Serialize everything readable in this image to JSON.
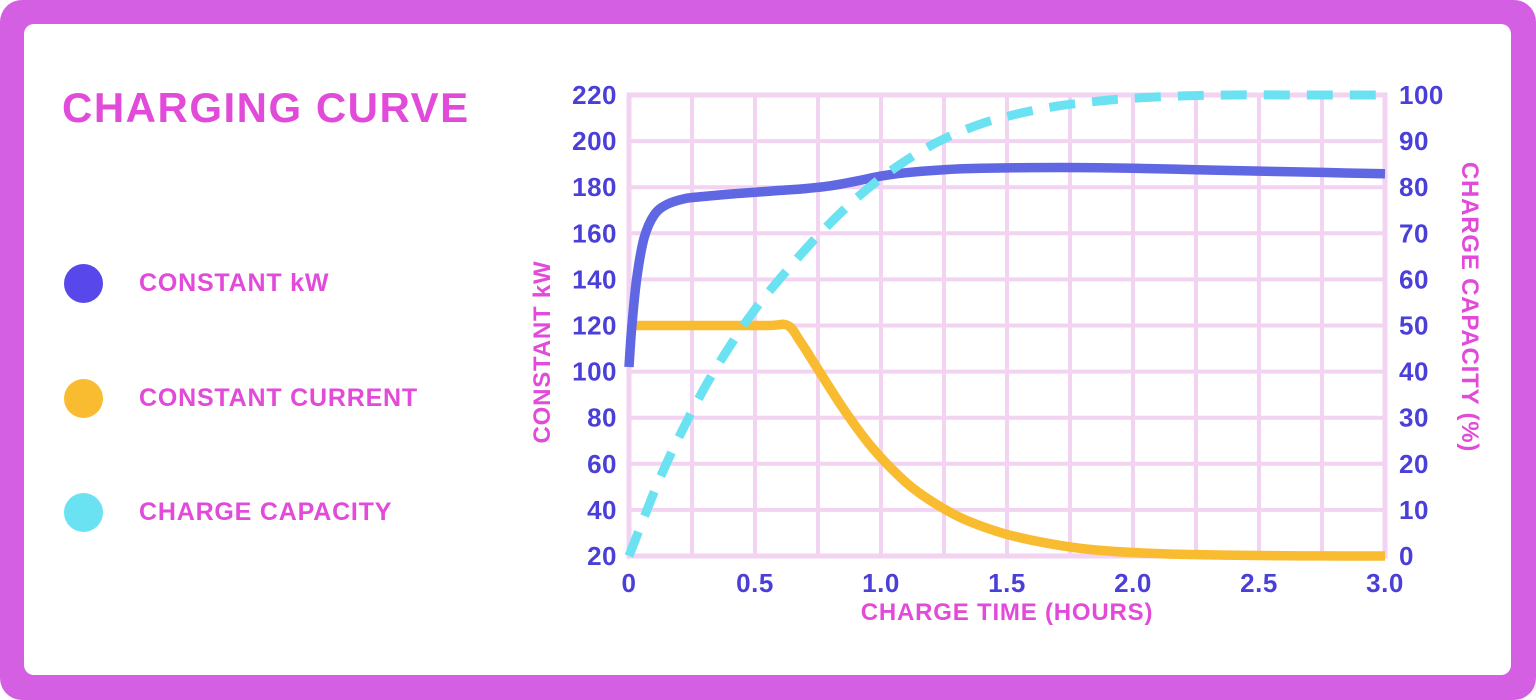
{
  "title": "CHARGING CURVE",
  "colors": {
    "frame": "#D55FE3",
    "panel": "#FFFFFF",
    "magenta_text": "#E24AD9",
    "tick_text": "#4A3FD8",
    "grid": "#F2D3F1",
    "blue_curve": "#6067E2",
    "blue_dot": "#5847EA",
    "yellow_curve": "#F9BB30",
    "cyan_curve": "#6BE2F2"
  },
  "legend": {
    "items": [
      {
        "label": "CONSTANT kW",
        "color": "#5847EA"
      },
      {
        "label": "CONSTANT CURRENT",
        "color": "#F9BB30"
      },
      {
        "label": "CHARGE CAPACITY",
        "color": "#6BE2F2"
      }
    ]
  },
  "chart_data": {
    "type": "line",
    "title": "CHARGING CURVE",
    "xlabel": "CHARGE TIME (HOURS)",
    "ylabel_left": "CONSTANT kW",
    "ylabel_right": "CHARGE CAPACITY (%)",
    "x_range": [
      0,
      3
    ],
    "y_left_range": [
      20,
      220
    ],
    "y_right_range": [
      0,
      100
    ],
    "x_tick_values": [
      0,
      0.5,
      1.0,
      1.5,
      2.0,
      2.5,
      3.0
    ],
    "x_tick_labels": [
      "0",
      "0.5",
      "1.0",
      "1.5",
      "2.0",
      "2.5",
      "3.0"
    ],
    "y_left_ticks": [
      220,
      200,
      180,
      160,
      140,
      120,
      100,
      80,
      60,
      40,
      20
    ],
    "y_right_ticks": [
      100,
      90,
      80,
      70,
      60,
      50,
      40,
      30,
      20,
      10,
      0
    ],
    "grid": {
      "on": true,
      "x_step": 0.25,
      "y_left_step": 20
    },
    "legend_position": "left",
    "series": [
      {
        "name": "CONSTANT kW",
        "axis": "left",
        "style": "solid",
        "color": "#6067E2",
        "x": [
          0,
          0.01,
          0.03,
          0.06,
          0.1,
          0.15,
          0.22,
          0.3,
          0.4,
          0.5,
          0.6,
          0.7,
          0.8,
          0.9,
          1.0,
          1.1,
          1.25,
          1.4,
          1.6,
          1.8,
          2.0,
          2.25,
          2.5,
          2.75,
          3.0
        ],
        "y": [
          102,
          118,
          140,
          158,
          168,
          172.5,
          175,
          176,
          177,
          177.8,
          178.6,
          179.4,
          180.6,
          182.6,
          184.8,
          186.3,
          187.6,
          188.2,
          188.5,
          188.5,
          188.2,
          187.6,
          187,
          186.4,
          185.8
        ]
      },
      {
        "name": "CONSTANT CURRENT",
        "axis": "left",
        "style": "solid",
        "color": "#F9BB30",
        "x": [
          0,
          0.3,
          0.55,
          0.63,
          0.68,
          0.75,
          0.85,
          0.95,
          1.05,
          1.15,
          1.3,
          1.45,
          1.6,
          1.8,
          2.0,
          2.2,
          2.5,
          2.75,
          3.0
        ],
        "y": [
          120,
          120,
          120,
          120,
          113,
          101,
          84,
          69,
          57,
          47.5,
          37.5,
          31,
          26.8,
          23.2,
          21.5,
          20.7,
          20.2,
          20.05,
          20
        ]
      },
      {
        "name": "CHARGE CAPACITY",
        "axis": "right",
        "style": "dashed",
        "color": "#6BE2F2",
        "x": [
          0,
          0.05,
          0.12,
          0.2,
          0.3,
          0.4,
          0.5,
          0.62,
          0.75,
          0.88,
          1.0,
          1.12,
          1.25,
          1.4,
          1.55,
          1.7,
          1.85,
          2.0,
          2.2,
          2.4,
          2.7,
          3.0
        ],
        "y": [
          0,
          7,
          16.5,
          26,
          36.5,
          45.5,
          53.5,
          61.5,
          69.5,
          76.5,
          82,
          86.5,
          90.5,
          93.8,
          96,
          97.6,
          98.6,
          99.3,
          99.8,
          100,
          100,
          100
        ]
      }
    ]
  }
}
